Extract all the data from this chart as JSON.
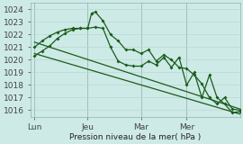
{
  "background_color": "#cdeae6",
  "grid_color": "#b8d8d4",
  "line_color": "#1a5c1a",
  "title": "Pression niveau de la mer( hPa )",
  "ylim": [
    1015.5,
    1024.5
  ],
  "yticks": [
    1016,
    1017,
    1018,
    1019,
    1020,
    1021,
    1022,
    1023,
    1024
  ],
  "xtick_labels": [
    "Lun",
    "Jeu",
    "Mar",
    "Mer"
  ],
  "xtick_positions": [
    0,
    7,
    14,
    20
  ],
  "x_vlines": [
    0,
    7,
    14,
    20
  ],
  "xlim": [
    -0.5,
    27
  ],
  "trend1_x": [
    0,
    27
  ],
  "trend1_y": [
    1021.4,
    1016.1
  ],
  "trend2_x": [
    0,
    27
  ],
  "trend2_y": [
    1020.5,
    1015.7
  ],
  "line1_x": [
    0,
    1,
    2,
    3,
    4,
    5,
    6,
    7,
    7.5,
    8,
    9,
    10,
    11,
    12,
    13,
    14,
    15,
    16,
    17,
    18,
    19,
    20,
    21,
    22,
    23,
    24,
    25,
    26,
    27
  ],
  "line1_y": [
    1021.0,
    1021.5,
    1021.9,
    1022.2,
    1022.4,
    1022.5,
    1022.5,
    1022.5,
    1023.7,
    1023.8,
    1023.1,
    1022.0,
    1021.5,
    1020.8,
    1020.8,
    1020.5,
    1020.8,
    1019.9,
    1020.4,
    1020.0,
    1019.4,
    1019.3,
    1018.8,
    1018.1,
    1017.0,
    1016.5,
    1017.0,
    1016.1,
    1016.0
  ],
  "line2_x": [
    0,
    1,
    2,
    3,
    4,
    5,
    6,
    7,
    8,
    9,
    10,
    11,
    12,
    13,
    14,
    15,
    16,
    17,
    18,
    19,
    20,
    21,
    22,
    23,
    24,
    25,
    26,
    27
  ],
  "line2_y": [
    1020.3,
    1020.7,
    1021.1,
    1021.7,
    1022.1,
    1022.4,
    1022.5,
    1022.5,
    1022.6,
    1022.5,
    1021.0,
    1019.9,
    1019.6,
    1019.5,
    1019.5,
    1019.9,
    1019.6,
    1020.2,
    1019.4,
    1020.2,
    1018.0,
    1019.0,
    1017.0,
    1018.8,
    1017.0,
    1016.5,
    1015.8,
    1015.9
  ]
}
